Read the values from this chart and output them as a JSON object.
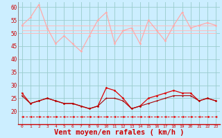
{
  "x": [
    0,
    1,
    2,
    3,
    4,
    5,
    6,
    7,
    8,
    9,
    10,
    11,
    12,
    13,
    14,
    15,
    16,
    17,
    18,
    19,
    20,
    21,
    22,
    23
  ],
  "line_gust": [
    53,
    56,
    61,
    52,
    46,
    49,
    46,
    43,
    49,
    55,
    58,
    46,
    51,
    52,
    46,
    55,
    51,
    47,
    53,
    58,
    52,
    53,
    54,
    53
  ],
  "line_avg1": [
    53,
    53,
    53,
    53,
    53,
    53,
    53,
    53,
    53,
    53,
    53,
    53,
    53,
    53,
    53,
    53,
    53,
    53,
    53,
    53,
    53,
    53,
    53,
    53
  ],
  "line_avg2": [
    51,
    51,
    51,
    51,
    51,
    51,
    51,
    51,
    51,
    51,
    51,
    51,
    51,
    51,
    51,
    51,
    51,
    51,
    51,
    51,
    51,
    51,
    51,
    51
  ],
  "line_avg3": [
    50,
    50,
    50,
    50,
    50,
    50,
    50,
    50,
    50,
    50,
    50,
    50,
    50,
    50,
    50,
    50,
    50,
    50,
    50,
    50,
    50,
    50,
    50,
    50
  ],
  "line_wind": [
    27,
    23,
    24,
    25,
    24,
    23,
    23,
    22,
    21,
    22,
    29,
    28,
    25,
    21,
    22,
    25,
    26,
    27,
    28,
    27,
    27,
    24,
    25,
    24
  ],
  "line_wind2": [
    26,
    23,
    24,
    25,
    24,
    23,
    23,
    22,
    21,
    22,
    25,
    25,
    24,
    21,
    22,
    23,
    24,
    25,
    26,
    26,
    26,
    24,
    25,
    24
  ],
  "line_const": [
    18,
    18,
    18,
    18,
    18,
    18,
    18,
    18,
    18,
    18,
    18,
    18,
    18,
    18,
    18,
    18,
    18,
    18,
    18,
    18,
    18,
    18,
    18,
    18
  ],
  "color_gust": "#ffaaaa",
  "color_avg": "#ffbbbb",
  "color_wind": "#dd0000",
  "color_wind2": "#aa0000",
  "color_const": "#ee0000",
  "bg_color": "#cceeff",
  "grid_color": "#99cccc",
  "xlabel": "Vent moyen/en rafales ( km/h )",
  "ylim": [
    15,
    62
  ],
  "yticks": [
    20,
    25,
    30,
    35,
    40,
    45,
    50,
    55,
    60
  ],
  "label_fontsize": 7.5
}
